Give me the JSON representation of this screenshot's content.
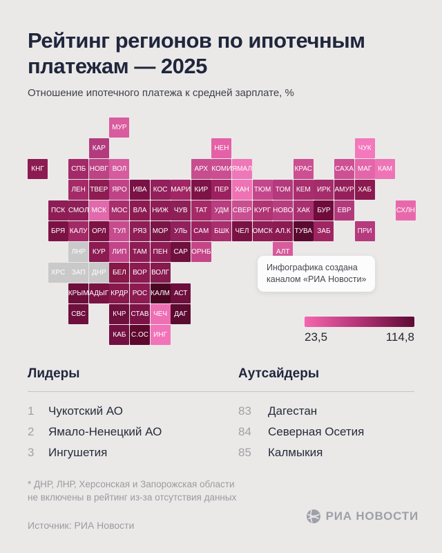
{
  "header": {
    "title_line1": "Рейтинг регионов по ипотечным",
    "title_line2": "платежам — 2025",
    "subtitle": "Отношение ипотечного платежа к средней зарплате, %"
  },
  "note": {
    "line1": "Инфографика создана",
    "line2": "каналом «РИА Новости»"
  },
  "leaders": {
    "title": "Лидеры",
    "items": [
      {
        "rank": "1",
        "name": "Чукотский АО"
      },
      {
        "rank": "2",
        "name": "Ямало-Ненецкий АО"
      },
      {
        "rank": "3",
        "name": "Ингушетия"
      }
    ]
  },
  "outsiders": {
    "title": "Аутсайдеры",
    "items": [
      {
        "rank": "83",
        "name": "Дагестан"
      },
      {
        "rank": "84",
        "name": "Северная Осетия"
      },
      {
        "rank": "85",
        "name": "Калмыкия"
      }
    ]
  },
  "footnote": {
    "line1": "* ДНР, ЛНР, Херсонская и Запорожская области",
    "line2": "не включены в рейтинг из-за отсутствия данных"
  },
  "source": "Источник: РИА Новости",
  "brand": "РИА НОВОСТИ",
  "chart_data": {
    "type": "heatmap",
    "title": "Рейтинг регионов по ипотечным платежам — 2025",
    "subtitle": "Отношение ипотечного платежа к средней зарплате, %",
    "colorbar": {
      "min": 23.5,
      "max": 114.8,
      "min_label": "23,5",
      "max_label": "114,8",
      "start_color": "#f566ae",
      "mid_color": "#b23376",
      "end_color": "#5d0a33"
    },
    "excluded_color": "#c9c9c9",
    "excluded_regions": [
      "ЛНР",
      "ХРС",
      "ЗАП",
      "ДНР"
    ],
    "tiles": [
      {
        "label": "МУР",
        "col": 4,
        "row": 0,
        "color": "#d95c9e"
      },
      {
        "label": "КАР",
        "col": 3,
        "row": 1,
        "color": "#b23b7e"
      },
      {
        "label": "НЕН",
        "col": 9,
        "row": 1,
        "color": "#e561a7"
      },
      {
        "label": "ЧУК",
        "col": 16,
        "row": 1,
        "color": "#f478bc"
      },
      {
        "label": "КНГ",
        "col": 0,
        "row": 2,
        "color": "#8c1b52"
      },
      {
        "label": "СПБ",
        "col": 2,
        "row": 2,
        "color": "#a32a68"
      },
      {
        "label": "НОВГ",
        "col": 3,
        "row": 2,
        "color": "#bc4384"
      },
      {
        "label": "ВОЛ",
        "col": 4,
        "row": 2,
        "color": "#d65c9e"
      },
      {
        "label": "АРХ",
        "col": 8,
        "row": 2,
        "color": "#c84d8f"
      },
      {
        "label": "КОМИ",
        "col": 9,
        "row": 2,
        "color": "#ca4e91"
      },
      {
        "label": "ЯМАЛ",
        "col": 10,
        "row": 2,
        "color": "#ee77b8"
      },
      {
        "label": "КРАС",
        "col": 13,
        "row": 2,
        "color": "#cc4f92"
      },
      {
        "label": "САХА",
        "col": 15,
        "row": 2,
        "color": "#cd5093"
      },
      {
        "label": "МАГ",
        "col": 16,
        "row": 2,
        "color": "#e466aa"
      },
      {
        "label": "КАМ",
        "col": 17,
        "row": 2,
        "color": "#ee74b6"
      },
      {
        "label": "ЛЕН",
        "col": 2,
        "row": 3,
        "color": "#a42b68"
      },
      {
        "label": "ТВЕР",
        "col": 3,
        "row": 3,
        "color": "#8d1c53"
      },
      {
        "label": "ЯРО",
        "col": 4,
        "row": 3,
        "color": "#c04388"
      },
      {
        "label": "ИВА",
        "col": 5,
        "row": 3,
        "color": "#7a1245"
      },
      {
        "label": "КОС",
        "col": 6,
        "row": 3,
        "color": "#93205c"
      },
      {
        "label": "МАРИ",
        "col": 7,
        "row": 3,
        "color": "#a12663"
      },
      {
        "label": "КИР",
        "col": 8,
        "row": 3,
        "color": "#7d1347"
      },
      {
        "label": "ПЕР",
        "col": 9,
        "row": 3,
        "color": "#9c2160"
      },
      {
        "label": "ХАН",
        "col": 10,
        "row": 3,
        "color": "#ee73b5"
      },
      {
        "label": "ТЮМ",
        "col": 11,
        "row": 3,
        "color": "#c4478b"
      },
      {
        "label": "ТОМ",
        "col": 12,
        "row": 3,
        "color": "#b43a7d"
      },
      {
        "label": "КЕМ",
        "col": 13,
        "row": 3,
        "color": "#a82e6d"
      },
      {
        "label": "ИРК",
        "col": 14,
        "row": 3,
        "color": "#a52c6b"
      },
      {
        "label": "АМУР",
        "col": 15,
        "row": 3,
        "color": "#951f5b"
      },
      {
        "label": "ХАБ",
        "col": 16,
        "row": 3,
        "color": "#8c1a51"
      },
      {
        "label": "ПСК",
        "col": 1,
        "row": 4,
        "color": "#8e1d55"
      },
      {
        "label": "СМОЛ",
        "col": 2,
        "row": 4,
        "color": "#8f1f58"
      },
      {
        "label": "МСК",
        "col": 3,
        "row": 4,
        "color": "#e06aab"
      },
      {
        "label": "МОС",
        "col": 4,
        "row": 4,
        "color": "#a82e6c"
      },
      {
        "label": "ВЛА",
        "col": 5,
        "row": 4,
        "color": "#8c1b52"
      },
      {
        "label": "НИЖ",
        "col": 6,
        "row": 4,
        "color": "#8e1d55"
      },
      {
        "label": "ЧУВ",
        "col": 7,
        "row": 4,
        "color": "#8e2058"
      },
      {
        "label": "ТАТ",
        "col": 8,
        "row": 4,
        "color": "#a62a67"
      },
      {
        "label": "УДМ",
        "col": 9,
        "row": 4,
        "color": "#b83e80"
      },
      {
        "label": "СВЕР",
        "col": 10,
        "row": 4,
        "color": "#c94f91"
      },
      {
        "label": "КУРГ",
        "col": 11,
        "row": 4,
        "color": "#b03473"
      },
      {
        "label": "НОВО",
        "col": 12,
        "row": 4,
        "color": "#b83d80"
      },
      {
        "label": "ХАК",
        "col": 13,
        "row": 4,
        "color": "#a93070"
      },
      {
        "label": "БУР",
        "col": 14,
        "row": 4,
        "color": "#6f0c3c"
      },
      {
        "label": "ЕВР",
        "col": 15,
        "row": 4,
        "color": "#b23a7c"
      },
      {
        "label": "СХЛН",
        "col": 18,
        "row": 4,
        "color": "#e869ab"
      },
      {
        "label": "БРЯ",
        "col": 1,
        "row": 5,
        "color": "#7b1244"
      },
      {
        "label": "КАЛУ",
        "col": 2,
        "row": 5,
        "color": "#a32a66"
      },
      {
        "label": "ОРЛ",
        "col": 3,
        "row": 5,
        "color": "#7c1345"
      },
      {
        "label": "ТУЛ",
        "col": 4,
        "row": 5,
        "color": "#c74c8f"
      },
      {
        "label": "РЯЗ",
        "col": 5,
        "row": 5,
        "color": "#8f1e56"
      },
      {
        "label": "МОР",
        "col": 6,
        "row": 5,
        "color": "#7a1647"
      },
      {
        "label": "УЛЬ",
        "col": 7,
        "row": 5,
        "color": "#90215c"
      },
      {
        "label": "САМ",
        "col": 8,
        "row": 5,
        "color": "#9c2361"
      },
      {
        "label": "БШК",
        "col": 9,
        "row": 5,
        "color": "#a92e6e"
      },
      {
        "label": "ЧЕЛ",
        "col": 10,
        "row": 5,
        "color": "#7a1244"
      },
      {
        "label": "ОМСК",
        "col": 11,
        "row": 5,
        "color": "#8e1d55"
      },
      {
        "label": "АЛ.К",
        "col": 12,
        "row": 5,
        "color": "#8c1b52"
      },
      {
        "label": "ТУВА",
        "col": 13,
        "row": 5,
        "color": "#5a0a30"
      },
      {
        "label": "ЗАБ",
        "col": 14,
        "row": 5,
        "color": "#a02563"
      },
      {
        "label": "ПРИ",
        "col": 16,
        "row": 5,
        "color": "#b53a7e"
      },
      {
        "label": "ЛНР",
        "col": 2,
        "row": 6,
        "color": "#c9c9c9"
      },
      {
        "label": "КУР",
        "col": 3,
        "row": 6,
        "color": "#8c1b52"
      },
      {
        "label": "ЛИП",
        "col": 4,
        "row": 6,
        "color": "#c2458a"
      },
      {
        "label": "ТАМ",
        "col": 5,
        "row": 6,
        "color": "#8e1d55"
      },
      {
        "label": "ПЕН",
        "col": 6,
        "row": 6,
        "color": "#8e1d55"
      },
      {
        "label": "САР",
        "col": 7,
        "row": 6,
        "color": "#70103e"
      },
      {
        "label": "ОРНБ",
        "col": 8,
        "row": 6,
        "color": "#c44687"
      },
      {
        "label": "АЛТ",
        "col": 12,
        "row": 6,
        "color": "#d75c9c"
      },
      {
        "label": "ХРС",
        "col": 1,
        "row": 7,
        "color": "#c9c9c9"
      },
      {
        "label": "ЗАП",
        "col": 2,
        "row": 7,
        "color": "#c9c9c9"
      },
      {
        "label": "ДНР",
        "col": 3,
        "row": 7,
        "color": "#c9c9c9"
      },
      {
        "label": "БЕЛ",
        "col": 4,
        "row": 7,
        "color": "#871848"
      },
      {
        "label": "ВОР",
        "col": 5,
        "row": 7,
        "color": "#8c1b52"
      },
      {
        "label": "ВОЛГ",
        "col": 6,
        "row": 7,
        "color": "#871a4e"
      },
      {
        "label": "КРЫМ",
        "col": 2,
        "row": 8,
        "color": "#6d0e3b"
      },
      {
        "label": "АДЫГ",
        "col": 3,
        "row": 8,
        "color": "#7a1243"
      },
      {
        "label": "КРДР",
        "col": 4,
        "row": 8,
        "color": "#87194d"
      },
      {
        "label": "РОС",
        "col": 5,
        "row": 8,
        "color": "#8c1b52"
      },
      {
        "label": "КАЛМ",
        "col": 6,
        "row": 8,
        "color": "#4b0624"
      },
      {
        "label": "АСТ",
        "col": 7,
        "row": 8,
        "color": "#6f0f3e"
      },
      {
        "label": "СВС",
        "col": 2,
        "row": 9,
        "color": "#6f0f3d"
      },
      {
        "label": "КЧР",
        "col": 4,
        "row": 9,
        "color": "#6f0f3e"
      },
      {
        "label": "СТАВ",
        "col": 5,
        "row": 9,
        "color": "#7c1347"
      },
      {
        "label": "ЧЕЧ",
        "col": 6,
        "row": 9,
        "color": "#ef6fb4"
      },
      {
        "label": "ДАГ",
        "col": 7,
        "row": 9,
        "color": "#5b0a30"
      },
      {
        "label": "КАБ",
        "col": 4,
        "row": 10,
        "color": "#731041"
      },
      {
        "label": "С.ОС",
        "col": 5,
        "row": 10,
        "color": "#5f082e"
      },
      {
        "label": "ИНГ",
        "col": 6,
        "row": 10,
        "color": "#f373b8"
      }
    ]
  }
}
